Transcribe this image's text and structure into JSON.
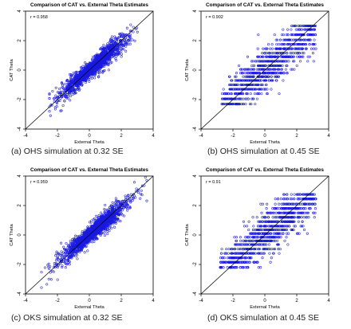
{
  "colors": {
    "points": "#1a1adf",
    "axes": "#000000",
    "diagonal": "#000000"
  },
  "chart_data": [
    {
      "type": "scatter",
      "title": "Comparison of CAT vs. External Theta Estimates",
      "xlabel": "External Theta",
      "ylabel": "CAT Theta",
      "annotation": "r = 0.958",
      "caption": "(a)  OHS simulation at 0.32 SE",
      "xlim": [
        -4,
        4
      ],
      "ylim": [
        -4,
        4
      ],
      "x_ticks": [
        "-4",
        "-2",
        "0",
        "2",
        "4"
      ],
      "y_ticks": [
        "-4",
        "-2",
        "0",
        "2",
        "4"
      ],
      "grid": false,
      "reference_line": "y = x",
      "correlation": 0.958,
      "discrete": false,
      "spread": 0.42,
      "x_range": [
        -2.5,
        3.2
      ],
      "n_points": 1500
    },
    {
      "type": "scatter",
      "title": "Comparison of CAT vs. External Theta Estimates",
      "xlabel": "External Theta",
      "ylabel": "CAT Theta",
      "annotation": "r = 0.902",
      "caption": "(b)  OHS simulation at 0.45 SE",
      "xlim": [
        -4,
        4
      ],
      "ylim": [
        -4,
        4
      ],
      "x_ticks": [
        "-4",
        "-2",
        "0",
        "2",
        "4"
      ],
      "y_ticks": [
        "-4",
        "-2",
        "0",
        "2",
        "4"
      ],
      "grid": false,
      "reference_line": "y = x",
      "correlation": 0.902,
      "discrete": true,
      "y_levels": [
        -2.3,
        -1.95,
        -1.6,
        -1.3,
        -1.0,
        -0.7,
        -0.45,
        -0.2,
        0.05,
        0.3,
        0.6,
        0.9,
        1.15,
        1.45,
        1.75,
        2.05,
        2.4,
        2.75,
        3.0
      ],
      "spread": 0.6,
      "x_range": [
        -2.7,
        3.2
      ],
      "n_points": 1100
    },
    {
      "type": "scatter",
      "title": "Comparison of CAT vs. External Theta Estimates",
      "xlabel": "External Theta",
      "ylabel": "CAT Theta",
      "annotation": "r = 0.959",
      "caption": "(c)  OKS simulation at 0.32 SE",
      "xlim": [
        -4,
        4
      ],
      "ylim": [
        -4,
        4
      ],
      "x_ticks": [
        "-4",
        "-2",
        "0",
        "2",
        "4"
      ],
      "y_ticks": [
        "-4",
        "-2",
        "0",
        "2",
        "4"
      ],
      "grid": false,
      "reference_line": "y = x",
      "correlation": 0.959,
      "discrete": false,
      "spread": 0.42,
      "x_range": [
        -3.0,
        3.6
      ],
      "n_points": 1600
    },
    {
      "type": "scatter",
      "title": "Comparison of CAT vs. External Theta Estimates",
      "xlabel": "External Theta",
      "ylabel": "CAT Theta",
      "annotation": "r = 0.91",
      "caption": "(d)  OKS simulation at 0.45 SE",
      "xlim": [
        -4,
        4
      ],
      "ylim": [
        -4,
        4
      ],
      "x_ticks": [
        "-4",
        "-2",
        "0",
        "2",
        "4"
      ],
      "y_ticks": [
        "-4",
        "-2",
        "0",
        "2",
        "4"
      ],
      "grid": false,
      "reference_line": "y = x",
      "correlation": 0.91,
      "discrete": true,
      "y_levels": [
        -2.2,
        -1.85,
        -1.55,
        -1.25,
        -0.95,
        -0.65,
        -0.4,
        -0.15,
        0.1,
        0.35,
        0.6,
        0.9,
        1.2,
        1.5,
        1.8,
        2.1,
        2.45,
        2.75
      ],
      "spread": 0.6,
      "x_range": [
        -2.8,
        3.2
      ],
      "n_points": 1100
    }
  ]
}
